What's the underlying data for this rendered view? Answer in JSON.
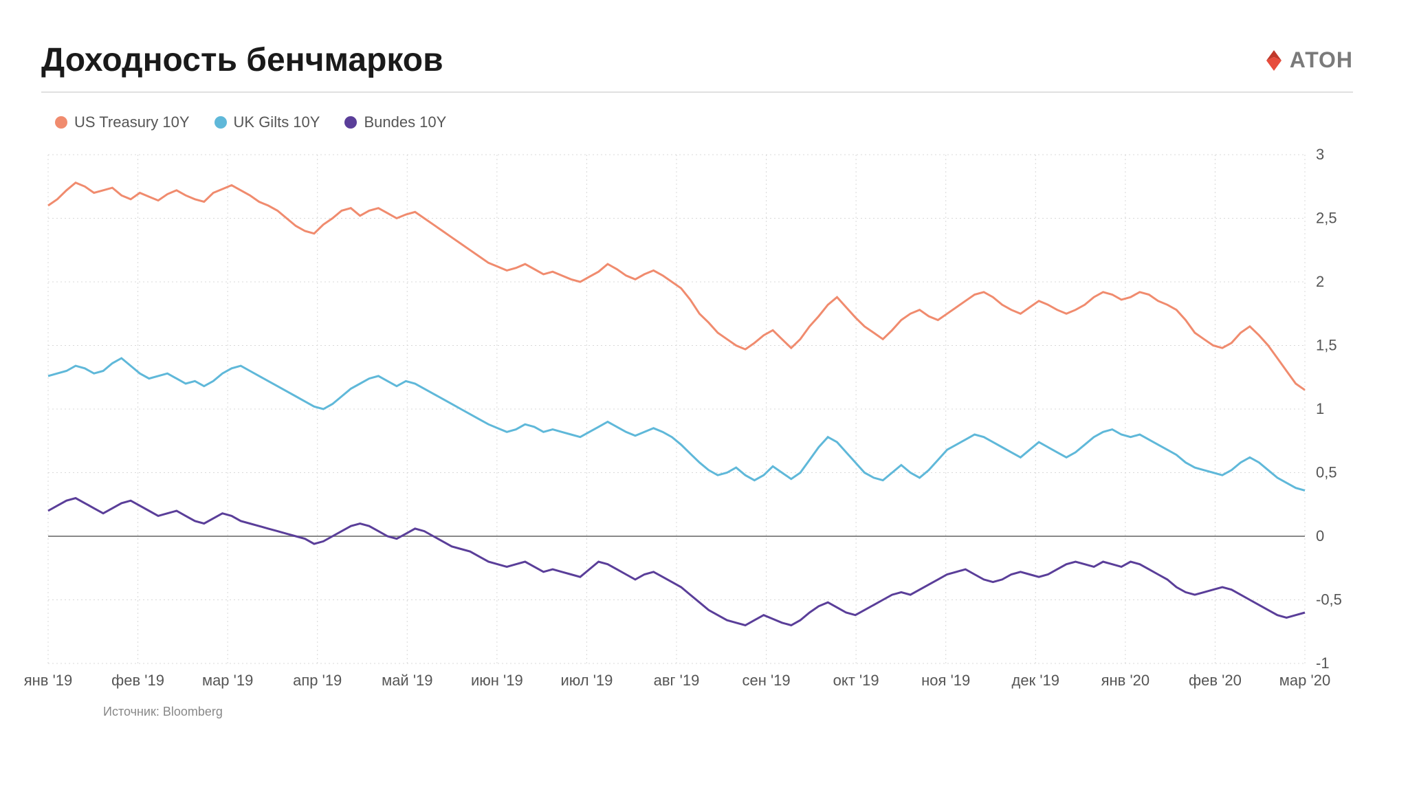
{
  "title": "Доходность бенчмарков",
  "logo_text": "АТОН",
  "source": "Источник: Bloomberg",
  "chart": {
    "type": "line",
    "background_color": "#ffffff",
    "grid_color": "#d8d8d8",
    "zero_line_color": "#888888",
    "axis_fontsize": 22,
    "axis_color": "#555555",
    "line_width": 3,
    "ylim": [
      -1,
      3
    ],
    "yticks": [
      -1,
      -0.5,
      0,
      0.5,
      1,
      1.5,
      2,
      2.5,
      3
    ],
    "ytick_labels": [
      "-1",
      "-0,5",
      "0",
      "0,5",
      "1",
      "1,5",
      "2",
      "2,5",
      "3"
    ],
    "x_labels": [
      "янв '19",
      "фев '19",
      "мар '19",
      "апр '19",
      "май '19",
      "июн '19",
      "июл '19",
      "авг '19",
      "сен '19",
      "окт '19",
      "ноя '19",
      "дек '19",
      "янв '20",
      "фев '20",
      "мар '20"
    ],
    "series": [
      {
        "name": "US Treasury 10Y",
        "color": "#f08b6e",
        "data": [
          2.6,
          2.65,
          2.72,
          2.78,
          2.75,
          2.7,
          2.72,
          2.74,
          2.68,
          2.65,
          2.7,
          2.67,
          2.64,
          2.69,
          2.72,
          2.68,
          2.65,
          2.63,
          2.7,
          2.73,
          2.76,
          2.72,
          2.68,
          2.63,
          2.6,
          2.56,
          2.5,
          2.44,
          2.4,
          2.38,
          2.45,
          2.5,
          2.56,
          2.58,
          2.52,
          2.56,
          2.58,
          2.54,
          2.5,
          2.53,
          2.55,
          2.5,
          2.45,
          2.4,
          2.35,
          2.3,
          2.25,
          2.2,
          2.15,
          2.12,
          2.09,
          2.11,
          2.14,
          2.1,
          2.06,
          2.08,
          2.05,
          2.02,
          2.0,
          2.04,
          2.08,
          2.14,
          2.1,
          2.05,
          2.02,
          2.06,
          2.09,
          2.05,
          2.0,
          1.95,
          1.86,
          1.75,
          1.68,
          1.6,
          1.55,
          1.5,
          1.47,
          1.52,
          1.58,
          1.62,
          1.55,
          1.48,
          1.55,
          1.65,
          1.73,
          1.82,
          1.88,
          1.8,
          1.72,
          1.65,
          1.6,
          1.55,
          1.62,
          1.7,
          1.75,
          1.78,
          1.73,
          1.7,
          1.75,
          1.8,
          1.85,
          1.9,
          1.92,
          1.88,
          1.82,
          1.78,
          1.75,
          1.8,
          1.85,
          1.82,
          1.78,
          1.75,
          1.78,
          1.82,
          1.88,
          1.92,
          1.9,
          1.86,
          1.88,
          1.92,
          1.9,
          1.85,
          1.82,
          1.78,
          1.7,
          1.6,
          1.55,
          1.5,
          1.48,
          1.52,
          1.6,
          1.65,
          1.58,
          1.5,
          1.4,
          1.3,
          1.2,
          1.15
        ]
      },
      {
        "name": "UK Gilts 10Y",
        "color": "#5fb8d9",
        "data": [
          1.26,
          1.28,
          1.3,
          1.34,
          1.32,
          1.28,
          1.3,
          1.36,
          1.4,
          1.34,
          1.28,
          1.24,
          1.26,
          1.28,
          1.24,
          1.2,
          1.22,
          1.18,
          1.22,
          1.28,
          1.32,
          1.34,
          1.3,
          1.26,
          1.22,
          1.18,
          1.14,
          1.1,
          1.06,
          1.02,
          1.0,
          1.04,
          1.1,
          1.16,
          1.2,
          1.24,
          1.26,
          1.22,
          1.18,
          1.22,
          1.2,
          1.16,
          1.12,
          1.08,
          1.04,
          1.0,
          0.96,
          0.92,
          0.88,
          0.85,
          0.82,
          0.84,
          0.88,
          0.86,
          0.82,
          0.84,
          0.82,
          0.8,
          0.78,
          0.82,
          0.86,
          0.9,
          0.86,
          0.82,
          0.79,
          0.82,
          0.85,
          0.82,
          0.78,
          0.72,
          0.65,
          0.58,
          0.52,
          0.48,
          0.5,
          0.54,
          0.48,
          0.44,
          0.48,
          0.55,
          0.5,
          0.45,
          0.5,
          0.6,
          0.7,
          0.78,
          0.74,
          0.66,
          0.58,
          0.5,
          0.46,
          0.44,
          0.5,
          0.56,
          0.5,
          0.46,
          0.52,
          0.6,
          0.68,
          0.72,
          0.76,
          0.8,
          0.78,
          0.74,
          0.7,
          0.66,
          0.62,
          0.68,
          0.74,
          0.7,
          0.66,
          0.62,
          0.66,
          0.72,
          0.78,
          0.82,
          0.84,
          0.8,
          0.78,
          0.8,
          0.76,
          0.72,
          0.68,
          0.64,
          0.58,
          0.54,
          0.52,
          0.5,
          0.48,
          0.52,
          0.58,
          0.62,
          0.58,
          0.52,
          0.46,
          0.42,
          0.38,
          0.36
        ]
      },
      {
        "name": "Bundes 10Y",
        "color": "#5a3e99",
        "data": [
          0.2,
          0.24,
          0.28,
          0.3,
          0.26,
          0.22,
          0.18,
          0.22,
          0.26,
          0.28,
          0.24,
          0.2,
          0.16,
          0.18,
          0.2,
          0.16,
          0.12,
          0.1,
          0.14,
          0.18,
          0.16,
          0.12,
          0.1,
          0.08,
          0.06,
          0.04,
          0.02,
          0.0,
          -0.02,
          -0.06,
          -0.04,
          0.0,
          0.04,
          0.08,
          0.1,
          0.08,
          0.04,
          0.0,
          -0.02,
          0.02,
          0.06,
          0.04,
          0.0,
          -0.04,
          -0.08,
          -0.1,
          -0.12,
          -0.16,
          -0.2,
          -0.22,
          -0.24,
          -0.22,
          -0.2,
          -0.24,
          -0.28,
          -0.26,
          -0.28,
          -0.3,
          -0.32,
          -0.26,
          -0.2,
          -0.22,
          -0.26,
          -0.3,
          -0.34,
          -0.3,
          -0.28,
          -0.32,
          -0.36,
          -0.4,
          -0.46,
          -0.52,
          -0.58,
          -0.62,
          -0.66,
          -0.68,
          -0.7,
          -0.66,
          -0.62,
          -0.65,
          -0.68,
          -0.7,
          -0.66,
          -0.6,
          -0.55,
          -0.52,
          -0.56,
          -0.6,
          -0.62,
          -0.58,
          -0.54,
          -0.5,
          -0.46,
          -0.44,
          -0.46,
          -0.42,
          -0.38,
          -0.34,
          -0.3,
          -0.28,
          -0.26,
          -0.3,
          -0.34,
          -0.36,
          -0.34,
          -0.3,
          -0.28,
          -0.3,
          -0.32,
          -0.3,
          -0.26,
          -0.22,
          -0.2,
          -0.22,
          -0.24,
          -0.2,
          -0.22,
          -0.24,
          -0.2,
          -0.22,
          -0.26,
          -0.3,
          -0.34,
          -0.4,
          -0.44,
          -0.46,
          -0.44,
          -0.42,
          -0.4,
          -0.42,
          -0.46,
          -0.5,
          -0.54,
          -0.58,
          -0.62,
          -0.64,
          -0.62,
          -0.6
        ]
      }
    ]
  }
}
